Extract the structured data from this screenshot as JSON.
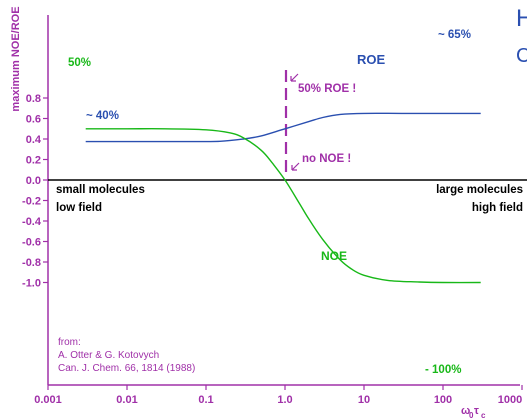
{
  "chart_data": {
    "type": "line",
    "x_scale": "log",
    "xlim": [
      0.001,
      1000
    ],
    "ylim": [
      -1.0,
      0.8
    ],
    "ylabel": "maximum NOE/ROE",
    "xlabel": "ω₀τc",
    "xticks": [
      "0.001",
      "0.01",
      "0.1",
      "1.0",
      "10",
      "100",
      "1000"
    ],
    "yticks": [
      "0.8",
      "0.6",
      "0.4",
      "0.2",
      "0.0",
      "-0.2",
      "-0.4",
      "-0.6",
      "-0.8",
      "-1.0"
    ],
    "series": [
      {
        "name": "ROE",
        "color": "#2a4fb0",
        "x": [
          0.003,
          0.01,
          0.05,
          0.15,
          0.3,
          0.5,
          1.0,
          2.0,
          3.0,
          5.0,
          10,
          30,
          100,
          300
        ],
        "y": [
          0.375,
          0.375,
          0.375,
          0.378,
          0.4,
          0.43,
          0.5,
          0.57,
          0.61,
          0.64,
          0.65,
          0.65,
          0.65,
          0.65
        ]
      },
      {
        "name": "NOE",
        "color": "#18b818",
        "x": [
          0.003,
          0.01,
          0.03,
          0.1,
          0.2,
          0.3,
          0.5,
          0.7,
          1.0,
          1.5,
          2.0,
          3.0,
          5.0,
          7.0,
          10,
          20,
          50,
          100,
          300
        ],
        "y": [
          0.5,
          0.5,
          0.5,
          0.49,
          0.46,
          0.41,
          0.29,
          0.16,
          0.0,
          -0.22,
          -0.38,
          -0.58,
          -0.78,
          -0.87,
          -0.93,
          -0.98,
          -0.995,
          -1.0,
          -1.0
        ]
      }
    ],
    "marker_x": 1.0,
    "annotations": {
      "noe_start": "50%",
      "roe_start": "~ 40%",
      "roe_end": "~ 65%",
      "noe_end": "- 100%",
      "roe_label": "ROE",
      "noe_label": "NOE",
      "roe_mid": "50% ROE !",
      "noe_zero": "no NOE !",
      "left_region_line1": "small molecules",
      "left_region_line2": "low field",
      "right_region_line1": "large molecules",
      "right_region_line2": "high field",
      "cite_line1": "from:",
      "cite_line2": "A. Otter & G. Kotovych",
      "cite_line3": "Can. J. Chem. 66, 1814 (1988)"
    },
    "corner_text": [
      "H",
      "C"
    ],
    "colors": {
      "axis_text": "#a030a8",
      "zero_line": "#000000",
      "marker": "#a030a8"
    }
  }
}
